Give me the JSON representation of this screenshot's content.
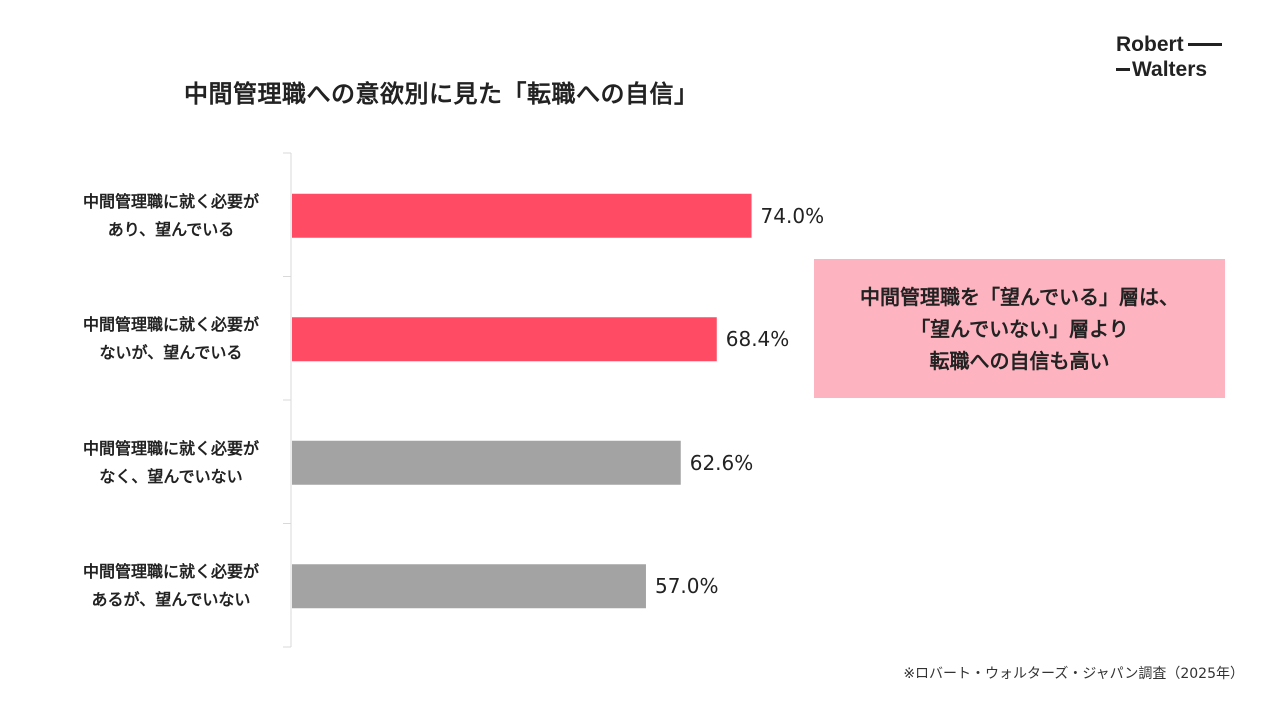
{
  "title": "中間管理職への意欲別に見た「転職への自信」",
  "logo": {
    "line1": "Robert",
    "line2": "Walters"
  },
  "colors": {
    "highlight_bar": "#ff4b63",
    "neutral_bar": "#a3a3a3",
    "callout_bg": "#fdb4c0",
    "axis": "#d9d9d9"
  },
  "chart_data": {
    "type": "bar",
    "orientation": "horizontal",
    "categories": [
      [
        "中間管理職に就く必要が",
        "あり、望んでいる"
      ],
      [
        "中間管理職に就く必要が",
        "ないが、望んでいる"
      ],
      [
        "中間管理職に就く必要が",
        "なく、望んでいない"
      ],
      [
        "中間管理職に就く必要が",
        "あるが、望んでいない"
      ]
    ],
    "values": [
      74.0,
      68.4,
      62.6,
      57.0
    ],
    "value_labels": [
      "74.0%",
      "68.4%",
      "62.6%",
      "57.0%"
    ],
    "bar_colors": [
      "#ff4b63",
      "#ff4b63",
      "#a3a3a3",
      "#a3a3a3"
    ],
    "xlim": [
      0,
      100
    ],
    "grid": false,
    "legend": "none"
  },
  "callout": {
    "lines": [
      "中間管理職を「望んでいる」層は、",
      "「望んでいない」層より",
      "転職への自信も高い"
    ]
  },
  "source_note": "※ロバート・ウォルターズ・ジャパン調査（2025年）"
}
